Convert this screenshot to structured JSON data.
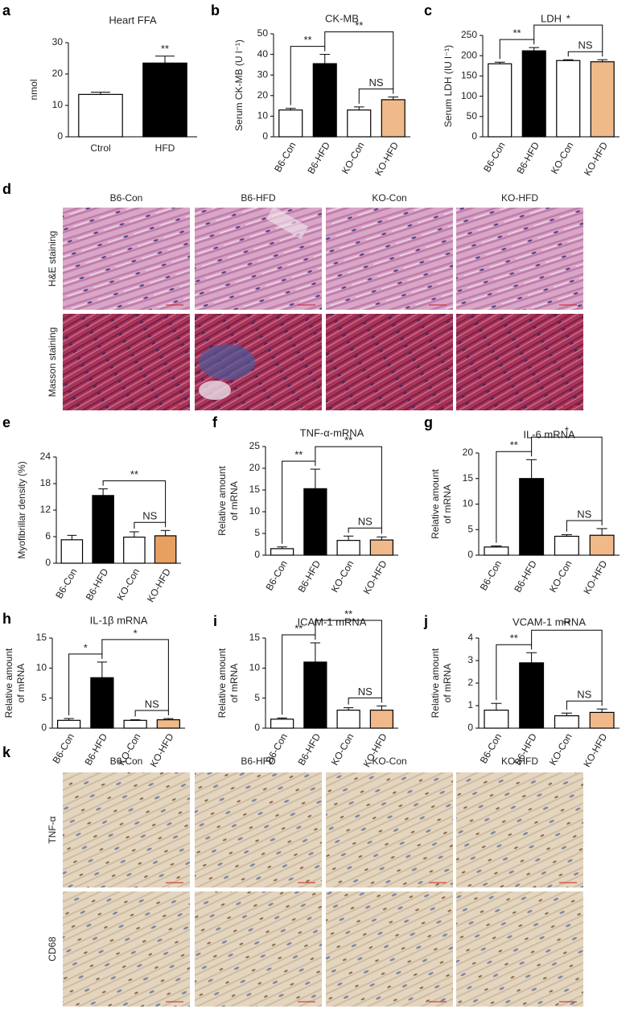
{
  "chart_data": [
    {
      "label": "a",
      "type": "bar",
      "title": "Heart FFA",
      "y_label": [
        "nmol"
      ],
      "categories": [
        "Ctrol",
        "HFD"
      ],
      "values": [
        13.5,
        23.5
      ],
      "errors": [
        0.7,
        2.2
      ],
      "colors": [
        "#ffffff",
        "#000000"
      ],
      "ylim": [
        0,
        30
      ],
      "yticks": [
        0,
        10,
        20,
        30
      ],
      "rotated_labels": false,
      "annotations": [
        {
          "label": "**",
          "from": 1,
          "to": 1
        }
      ]
    },
    {
      "label": "b",
      "type": "bar",
      "title": "CK-MB",
      "y_label": [
        "Serum CK-MB (U l⁻¹)"
      ],
      "categories": [
        "B6-Con",
        "B6-HFD",
        "KO-Con",
        "KO-HFD"
      ],
      "values": [
        13,
        35.5,
        13,
        18
      ],
      "errors": [
        0.8,
        4.5,
        1.5,
        1.3
      ],
      "colors": [
        "#ffffff",
        "#000000",
        "#ffffff",
        "#f0b98a"
      ],
      "ylim": [
        0,
        50
      ],
      "yticks": [
        0,
        10,
        20,
        30,
        40,
        50
      ],
      "rotated_labels": true,
      "annotations": [
        {
          "label": "**",
          "from": 0,
          "to": 1
        },
        {
          "label": "NS",
          "from": 2,
          "to": 3
        },
        {
          "label": "**",
          "from": 1,
          "to": 3
        }
      ]
    },
    {
      "label": "c",
      "type": "bar",
      "title": "LDH",
      "y_label": [
        "Serum LDH (IU l⁻¹)"
      ],
      "categories": [
        "B6-Con",
        "B6-HFD",
        "KO-Con",
        "KO-HFD"
      ],
      "values": [
        180,
        212,
        188,
        185
      ],
      "errors": [
        4,
        8,
        2,
        5
      ],
      "colors": [
        "#ffffff",
        "#000000",
        "#ffffff",
        "#f0b98a"
      ],
      "ylim": [
        0,
        250
      ],
      "yticks": [
        0,
        50,
        100,
        150,
        200,
        250
      ],
      "rotated_labels": true,
      "annotations": [
        {
          "label": "**",
          "from": 0,
          "to": 1
        },
        {
          "label": "NS",
          "from": 2,
          "to": 3
        },
        {
          "label": "*",
          "from": 1,
          "to": 3
        }
      ]
    },
    {
      "label": "e",
      "type": "bar",
      "y_label": [
        "Myofibrillar density (%)"
      ],
      "categories": [
        "B6-Con",
        "B6-HFD",
        "KO-Con",
        "KO-HFD"
      ],
      "values": [
        5.3,
        15.3,
        5.9,
        6.2
      ],
      "errors": [
        1.0,
        1.5,
        1.2,
        1.2
      ],
      "colors": [
        "#ffffff",
        "#000000",
        "#ffffff",
        "#e8a060"
      ],
      "ylim": [
        0,
        24
      ],
      "yticks": [
        0,
        6,
        12,
        18,
        24
      ],
      "rotated_labels": true,
      "annotations": [
        {
          "label": "NS",
          "from": 2,
          "to": 3
        },
        {
          "label": "**",
          "from": 1,
          "to": 3
        }
      ]
    },
    {
      "label": "f",
      "type": "bar",
      "title": "TNF-α-mRNA",
      "y_label": [
        "Relative amount",
        "of mRNA"
      ],
      "categories": [
        "B6-Con",
        "B6-HFD",
        "KO-Con",
        "KO-HFD"
      ],
      "values": [
        1.5,
        15.3,
        3.4,
        3.5
      ],
      "errors": [
        0.4,
        4.5,
        1.0,
        0.7
      ],
      "colors": [
        "#ffffff",
        "#000000",
        "#ffffff",
        "#f0b98a"
      ],
      "ylim": [
        0,
        25
      ],
      "yticks": [
        0,
        5,
        10,
        15,
        20,
        25
      ],
      "rotated_labels": true,
      "annotations": [
        {
          "label": "**",
          "from": 0,
          "to": 1
        },
        {
          "label": "NS",
          "from": 2,
          "to": 3
        },
        {
          "label": "**",
          "from": 1,
          "to": 3
        }
      ]
    },
    {
      "label": "g",
      "type": "bar",
      "title": "IL-6 mRNA",
      "y_label": [
        "Relative amount",
        "of mRNA"
      ],
      "categories": [
        "B6-Con",
        "B6-HFD",
        "KO-Con",
        "KO-HFD"
      ],
      "values": [
        1.6,
        15,
        3.7,
        3.9
      ],
      "errors": [
        0.2,
        3.7,
        0.3,
        1.3
      ],
      "colors": [
        "#ffffff",
        "#000000",
        "#ffffff",
        "#f0b98a"
      ],
      "ylim": [
        0,
        20
      ],
      "yticks": [
        0,
        5,
        10,
        15,
        20
      ],
      "rotated_labels": true,
      "annotations": [
        {
          "label": "**",
          "from": 0,
          "to": 1
        },
        {
          "label": "NS",
          "from": 2,
          "to": 3
        },
        {
          "label": "*",
          "from": 1,
          "to": 3
        }
      ]
    },
    {
      "label": "h",
      "type": "bar",
      "title": "IL-1β mRNA",
      "y_label": [
        "Relative amount",
        "of mRNA"
      ],
      "categories": [
        "B6-Con",
        "B6-HFD",
        "KO-Con",
        "KO-HFD"
      ],
      "values": [
        1.3,
        8.4,
        1.3,
        1.4
      ],
      "errors": [
        0.3,
        2.6,
        0.1,
        0.2
      ],
      "colors": [
        "#ffffff",
        "#000000",
        "#ffffff",
        "#f0b98a"
      ],
      "ylim": [
        0,
        15
      ],
      "yticks": [
        0,
        5,
        10,
        15
      ],
      "rotated_labels": true,
      "annotations": [
        {
          "label": "*",
          "from": 0,
          "to": 1
        },
        {
          "label": "NS",
          "from": 2,
          "to": 3
        },
        {
          "label": "*",
          "from": 1,
          "to": 3
        }
      ]
    },
    {
      "label": "i",
      "type": "bar",
      "title": "ICAM-1 mRNA",
      "y_label": [
        "Relative amount",
        "of mRNA"
      ],
      "categories": [
        "B6-Con",
        "B6-HFD",
        "KO-Con",
        "KO-HFD"
      ],
      "values": [
        1.5,
        11,
        3.0,
        3.0
      ],
      "errors": [
        0.2,
        3.2,
        0.4,
        0.7
      ],
      "colors": [
        "#ffffff",
        "#000000",
        "#ffffff",
        "#f0b98a"
      ],
      "ylim": [
        0,
        15
      ],
      "yticks": [
        0,
        5,
        10,
        15
      ],
      "rotated_labels": true,
      "annotations": [
        {
          "label": "**",
          "from": 0,
          "to": 1
        },
        {
          "label": "NS",
          "from": 2,
          "to": 3
        },
        {
          "label": "**",
          "from": 1,
          "to": 3
        }
      ]
    },
    {
      "label": "j",
      "type": "bar",
      "title": "VCAM-1 mRNA",
      "y_label": [
        "Relative amount",
        "of mRNA"
      ],
      "categories": [
        "B6-Con",
        "B6-HFD",
        "KO-Con",
        "KO-HFD"
      ],
      "values": [
        0.8,
        2.9,
        0.55,
        0.7
      ],
      "errors": [
        0.3,
        0.45,
        0.12,
        0.15
      ],
      "colors": [
        "#ffffff",
        "#000000",
        "#ffffff",
        "#f0b98a"
      ],
      "ylim": [
        0,
        4
      ],
      "yticks": [
        0,
        1,
        2,
        3,
        4
      ],
      "rotated_labels": true,
      "annotations": [
        {
          "label": "**",
          "from": 0,
          "to": 1
        },
        {
          "label": "NS",
          "from": 2,
          "to": 3
        },
        {
          "label": "**",
          "from": 1,
          "to": 3
        }
      ]
    }
  ],
  "image_panels": [
    {
      "label": "d",
      "columns": [
        "B6-Con",
        "B6-HFD",
        "KO-Con",
        "KO-HFD"
      ],
      "rows": [
        "H&E staining",
        "Masson staining"
      ]
    },
    {
      "label": "k",
      "columns": [
        "B6-Con",
        "B6-HFD",
        "KO-Con",
        "KO-HFD"
      ],
      "rows": [
        "TNF-α",
        "CD68"
      ]
    }
  ]
}
